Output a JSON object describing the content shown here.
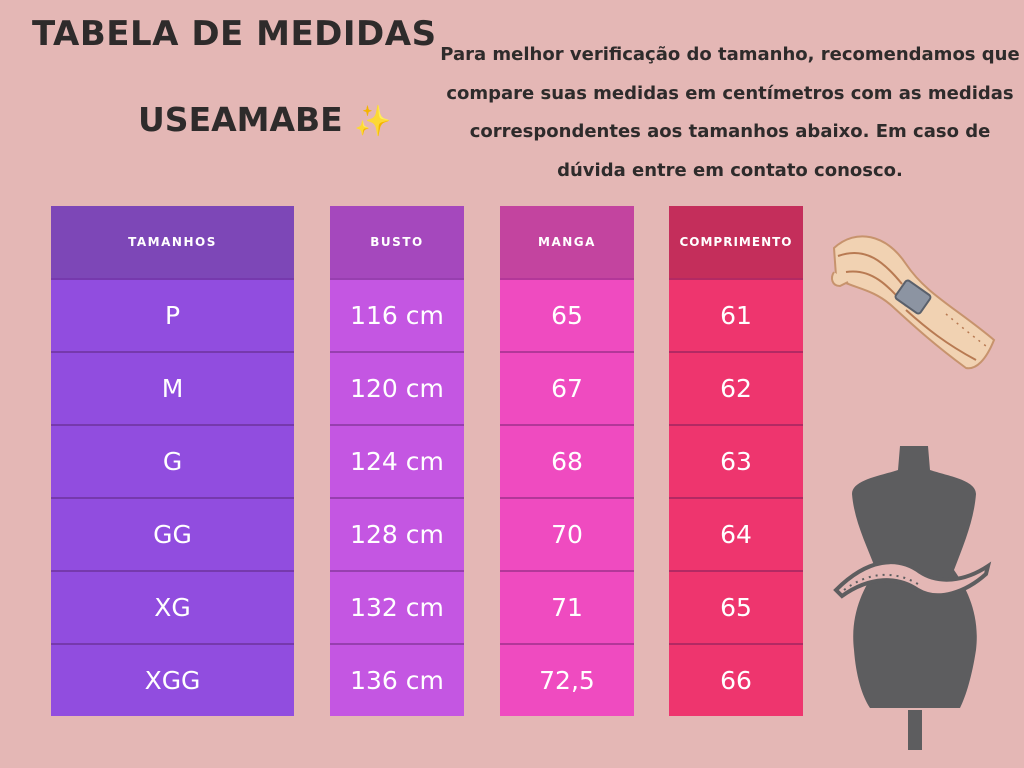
{
  "header": {
    "title": "TABELA DE MEDIDAS",
    "brand": "USEAMABE",
    "sparkle": "✨",
    "intro": "Para melhor verificação do tamanho, recomendamos que compare suas medidas em centímetros  com as medidas correspondentes aos tamanhos abaixo. Em caso de dúvida entre em contato conosco."
  },
  "table": {
    "columns": [
      {
        "key": "tamanhos",
        "header": "TAMANHOS",
        "values": [
          "P",
          "M",
          "G",
          "GG",
          "XG",
          "XGG"
        ]
      },
      {
        "key": "busto",
        "header": "BUSTO",
        "values": [
          "116 cm",
          "120 cm",
          "124 cm",
          "128 cm",
          "132 cm",
          "136 cm"
        ]
      },
      {
        "key": "manga",
        "header": "MANGA",
        "values": [
          "65",
          "67",
          "68",
          "70",
          "71",
          "72,5"
        ]
      },
      {
        "key": "comprimento",
        "header": "COMPRIMENTO",
        "values": [
          "61",
          "62",
          "63",
          "64",
          "65",
          "66"
        ]
      }
    ]
  },
  "decor": {
    "icons": [
      "measuring-tape-icon",
      "mannequin-icon"
    ],
    "colors": {
      "background": "#e4b7b5",
      "tamanhos": "#914ddf",
      "busto": "#c456e2",
      "manga": "#ef4bc0",
      "comprimento": "#ee356e"
    }
  }
}
